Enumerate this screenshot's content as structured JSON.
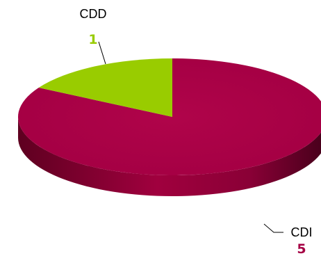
{
  "chart_data": {
    "type": "pie",
    "categories": [
      "CDI",
      "CDD"
    ],
    "values": [
      5,
      1
    ],
    "colors": [
      "#A50044",
      "#99CC00"
    ],
    "three_d": true,
    "legend": "none",
    "data_labels": "outside-with-leader-lines"
  }
}
